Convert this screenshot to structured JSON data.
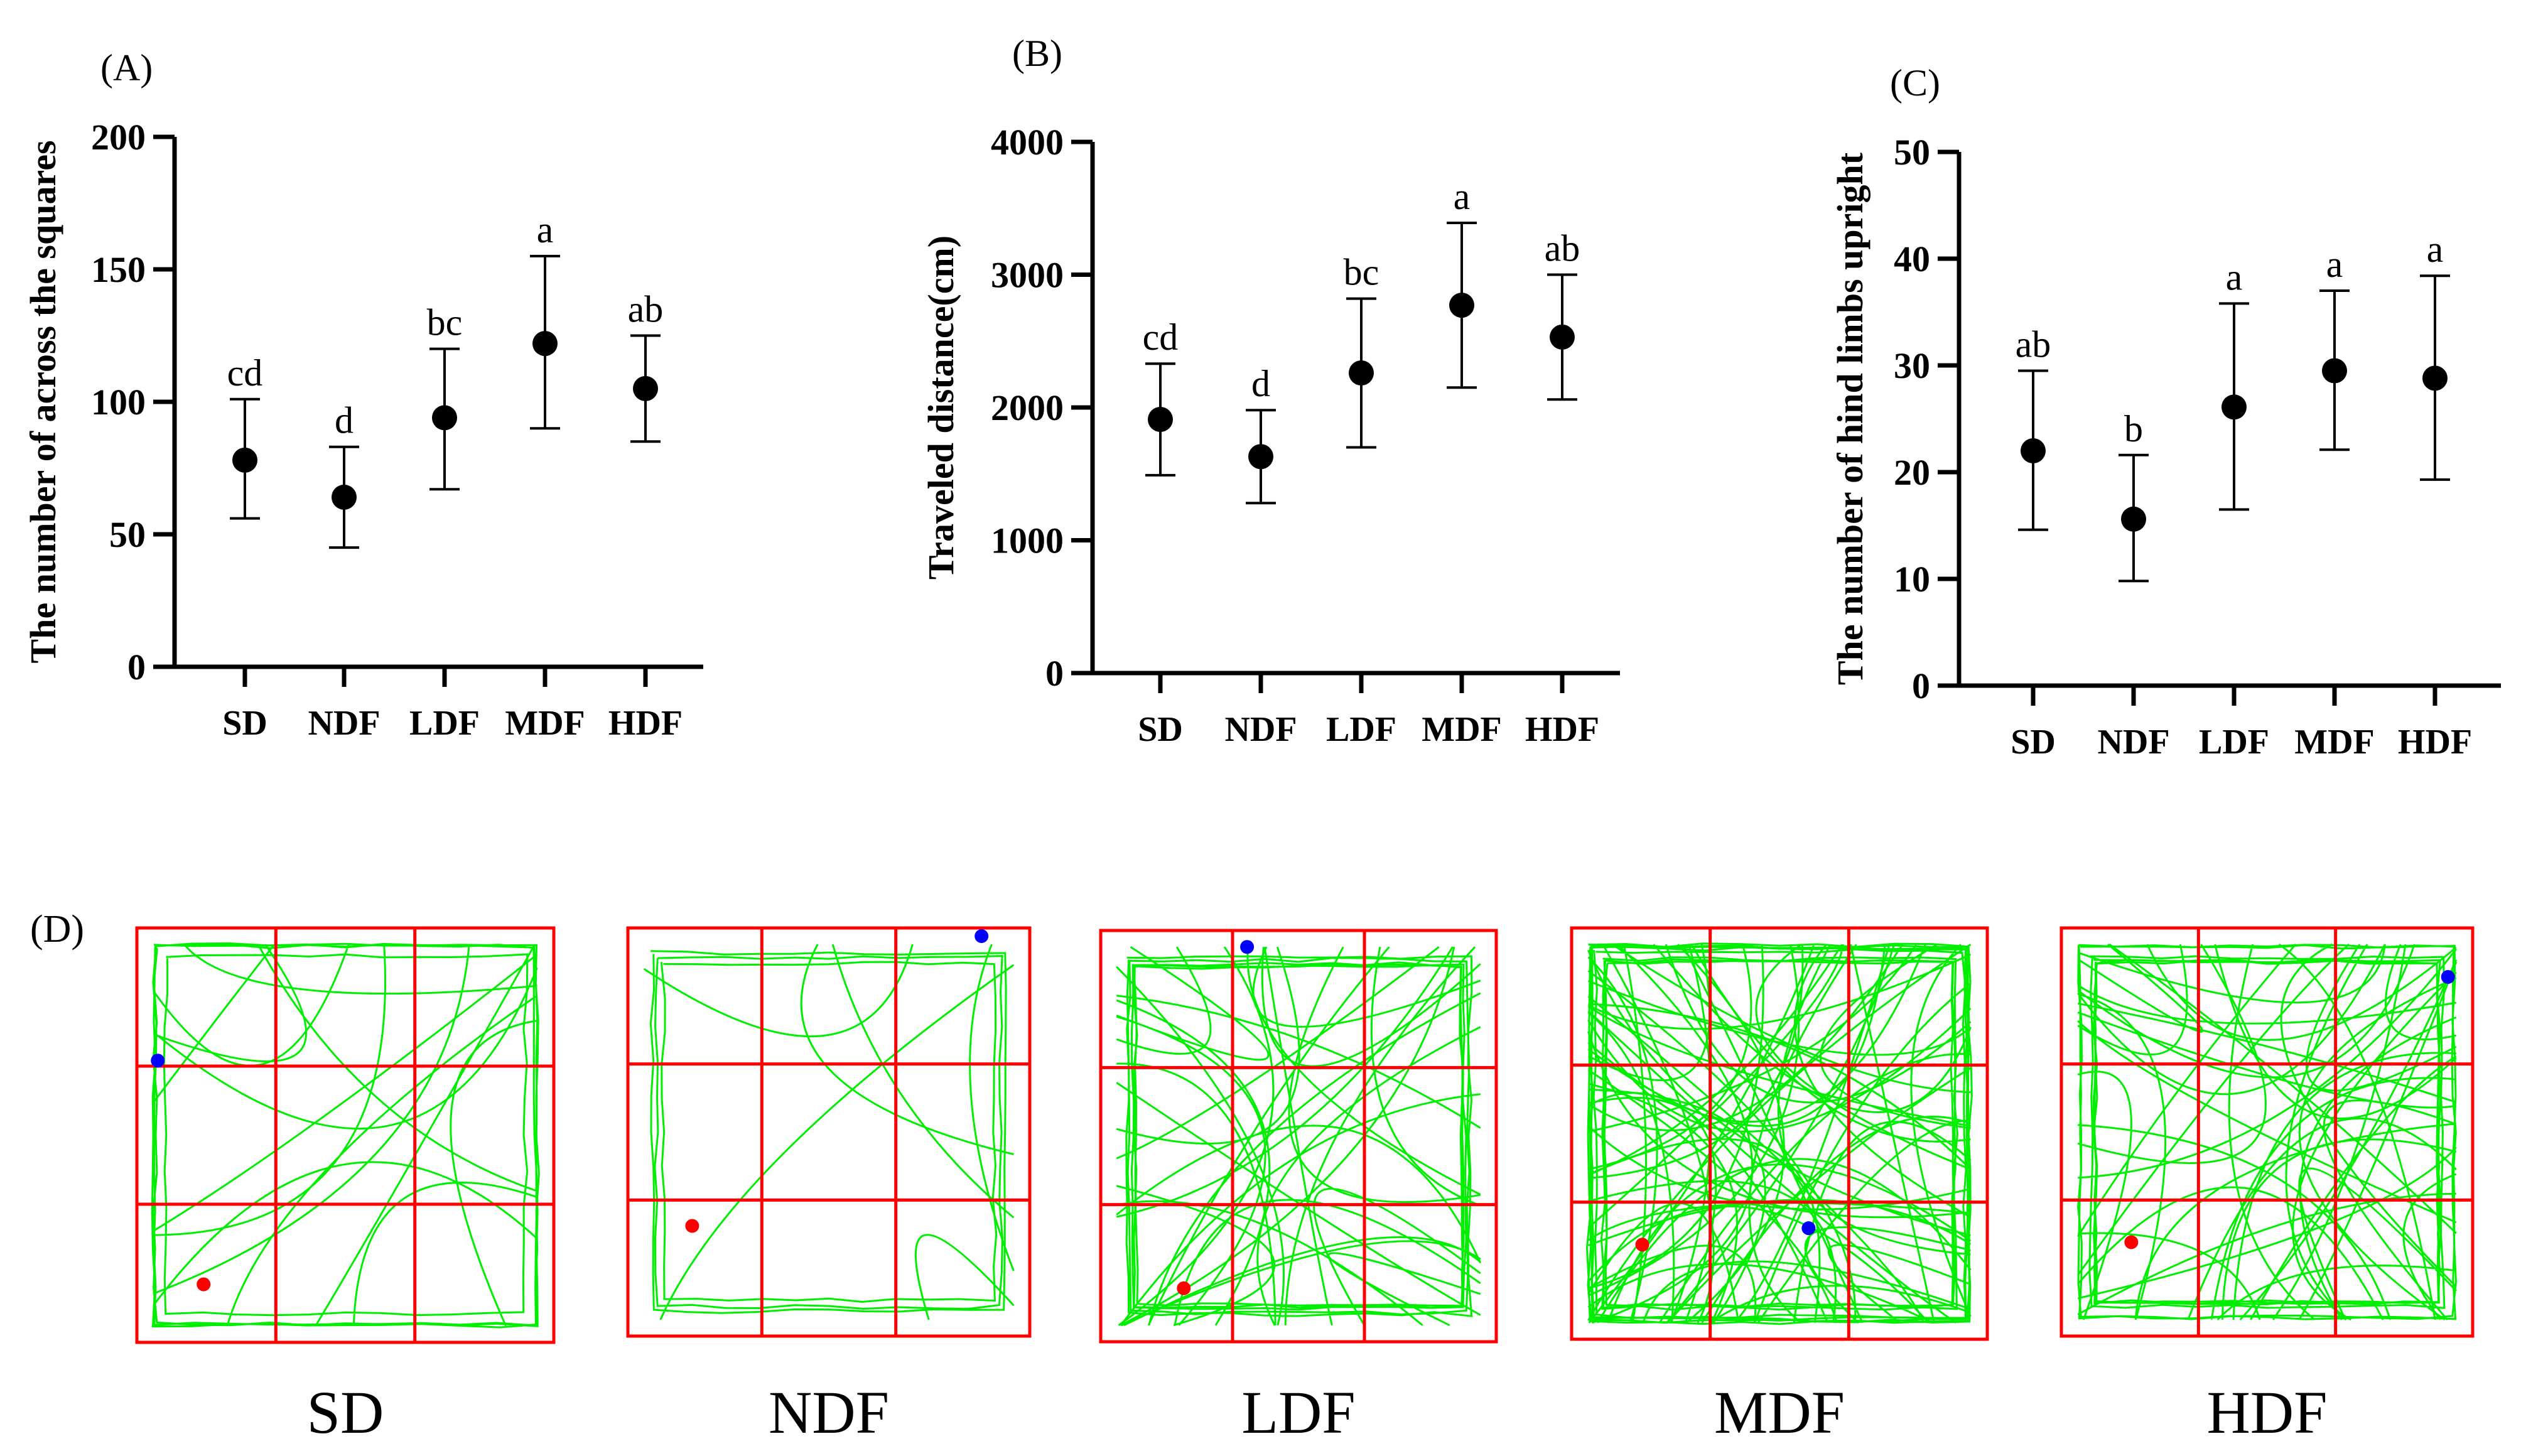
{
  "colors": {
    "marker": "#000000",
    "grid": "#ff0000",
    "track": "#00ee00",
    "start_dot": "#ff0000",
    "end_dot": "#0000ff"
  },
  "chart_data": [
    {
      "panel": "(A)",
      "type": "scatter",
      "ylabel": "The number of across the squares",
      "xlabel": "",
      "ylim": [
        0,
        200
      ],
      "yticks": [
        "0",
        "50",
        "100",
        "150",
        "200"
      ],
      "categories": [
        "SD",
        "NDF",
        "LDF",
        "MDF",
        "HDF"
      ],
      "values": [
        78,
        64,
        94,
        122,
        105
      ],
      "error_low": [
        56,
        45,
        67,
        90,
        85
      ],
      "error_high": [
        101,
        83,
        120,
        155,
        125
      ],
      "letters": [
        "cd",
        "d",
        "bc",
        "a",
        "ab"
      ]
    },
    {
      "panel": "(B)",
      "type": "scatter",
      "ylabel": "Traveled distance(cm)",
      "xlabel": "",
      "ylim": [
        0,
        4000
      ],
      "yticks": [
        "0",
        "1000",
        "2000",
        "3000",
        "4000"
      ],
      "categories": [
        "SD",
        "NDF",
        "LDF",
        "MDF",
        "HDF"
      ],
      "values": [
        1910,
        1630,
        2260,
        2770,
        2530
      ],
      "error_low": [
        1490,
        1280,
        1700,
        2150,
        2060
      ],
      "error_high": [
        2330,
        1980,
        2820,
        3390,
        3000
      ],
      "letters": [
        "cd",
        "d",
        "bc",
        "a",
        "ab"
      ]
    },
    {
      "panel": "(C)",
      "type": "scatter",
      "ylabel": "The number of hind limbs upright",
      "xlabel": "",
      "ylim": [
        0,
        50
      ],
      "yticks": [
        "0",
        "10",
        "20",
        "30",
        "40",
        "50"
      ],
      "categories": [
        "SD",
        "NDF",
        "LDF",
        "MDF",
        "HDF"
      ],
      "values": [
        22,
        15.6,
        26.1,
        29.5,
        28.8
      ],
      "error_low": [
        14.6,
        9.8,
        16.5,
        22.1,
        19.3
      ],
      "error_high": [
        29.5,
        21.6,
        35.8,
        37.0,
        38.4
      ],
      "letters": [
        "ab",
        "b",
        "a",
        "a",
        "a"
      ]
    }
  ],
  "panel_d": {
    "label": "(D)",
    "tracks": [
      "SD",
      "NDF",
      "LDF",
      "MDF",
      "HDF"
    ]
  }
}
